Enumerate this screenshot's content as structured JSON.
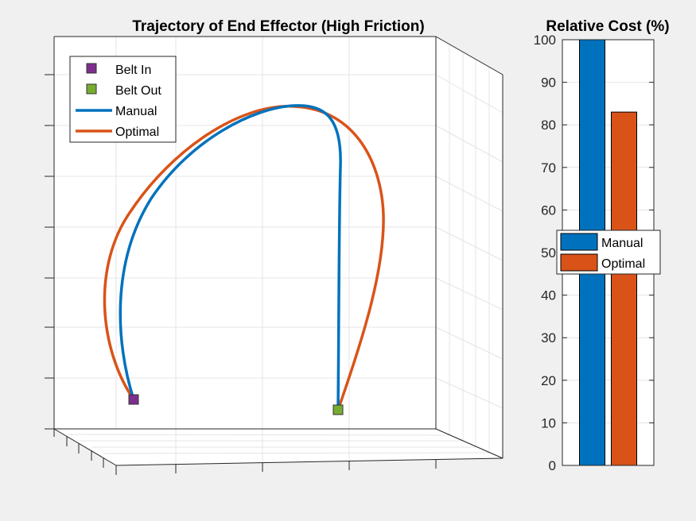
{
  "chart_data": [
    {
      "type": "line",
      "title": "Trajectory of End Effector (High Friction)",
      "xlabel": "",
      "ylabel": "",
      "grid": true,
      "legend_location": "top-left",
      "legend": [
        "Belt In",
        "Belt Out",
        "Manual",
        "Optimal"
      ],
      "markers": [
        {
          "name": "Belt In",
          "color": "#7E2F8E"
        },
        {
          "name": "Belt Out",
          "color": "#77AC30"
        }
      ],
      "series": [
        {
          "name": "Manual",
          "color": "#0072BD"
        },
        {
          "name": "Optimal",
          "color": "#D95319"
        }
      ]
    },
    {
      "type": "bar",
      "title": "Relative Cost (%)",
      "ylim": [
        0,
        100
      ],
      "yticks": [
        "0",
        "10",
        "20",
        "30",
        "40",
        "50",
        "60",
        "70",
        "80",
        "90",
        "100"
      ],
      "grid": true,
      "legend_location": "center",
      "series": [
        {
          "name": "Manual",
          "value": 100,
          "color": "#0072BD"
        },
        {
          "name": "Optimal",
          "value": 83,
          "color": "#D95319"
        }
      ]
    }
  ]
}
